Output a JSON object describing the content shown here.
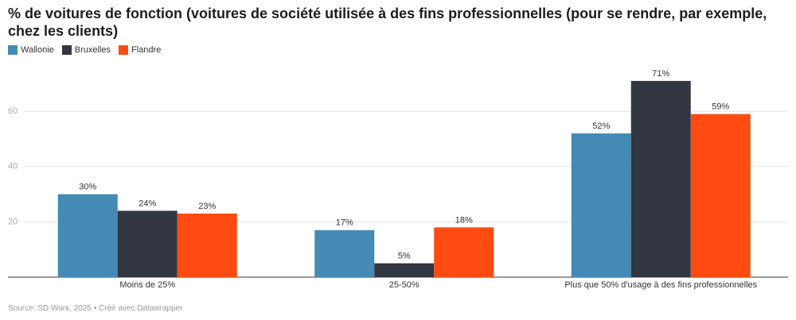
{
  "chart_data": {
    "type": "bar",
    "title": "% de voitures de fonction (voitures de société utilisée à des fins professionnelles (pour se rendre, par exemple, chez les clients)",
    "categories": [
      "Moins de 25%",
      "25-50%",
      "Plus que 50% d'usage à des fins professionnelles"
    ],
    "series": [
      {
        "name": "Wallonie",
        "color": "#438ab5",
        "values": [
          30,
          17,
          52
        ],
        "value_labels": [
          "30%",
          "17%",
          "52%"
        ]
      },
      {
        "name": "Bruxelles",
        "color": "#323641",
        "values": [
          24,
          5,
          71
        ],
        "value_labels": [
          "24%",
          "5%",
          "71%"
        ]
      },
      {
        "name": "Flandre",
        "color": "#fd4b12",
        "values": [
          23,
          18,
          59
        ],
        "value_labels": [
          "23%",
          "18%",
          "59%"
        ]
      }
    ],
    "ylim": [
      0,
      75
    ],
    "yticks": [
      20,
      40,
      60
    ],
    "grid": true,
    "source": "Source: SD Worx, 2025 • Créé avec Datawrapper"
  }
}
